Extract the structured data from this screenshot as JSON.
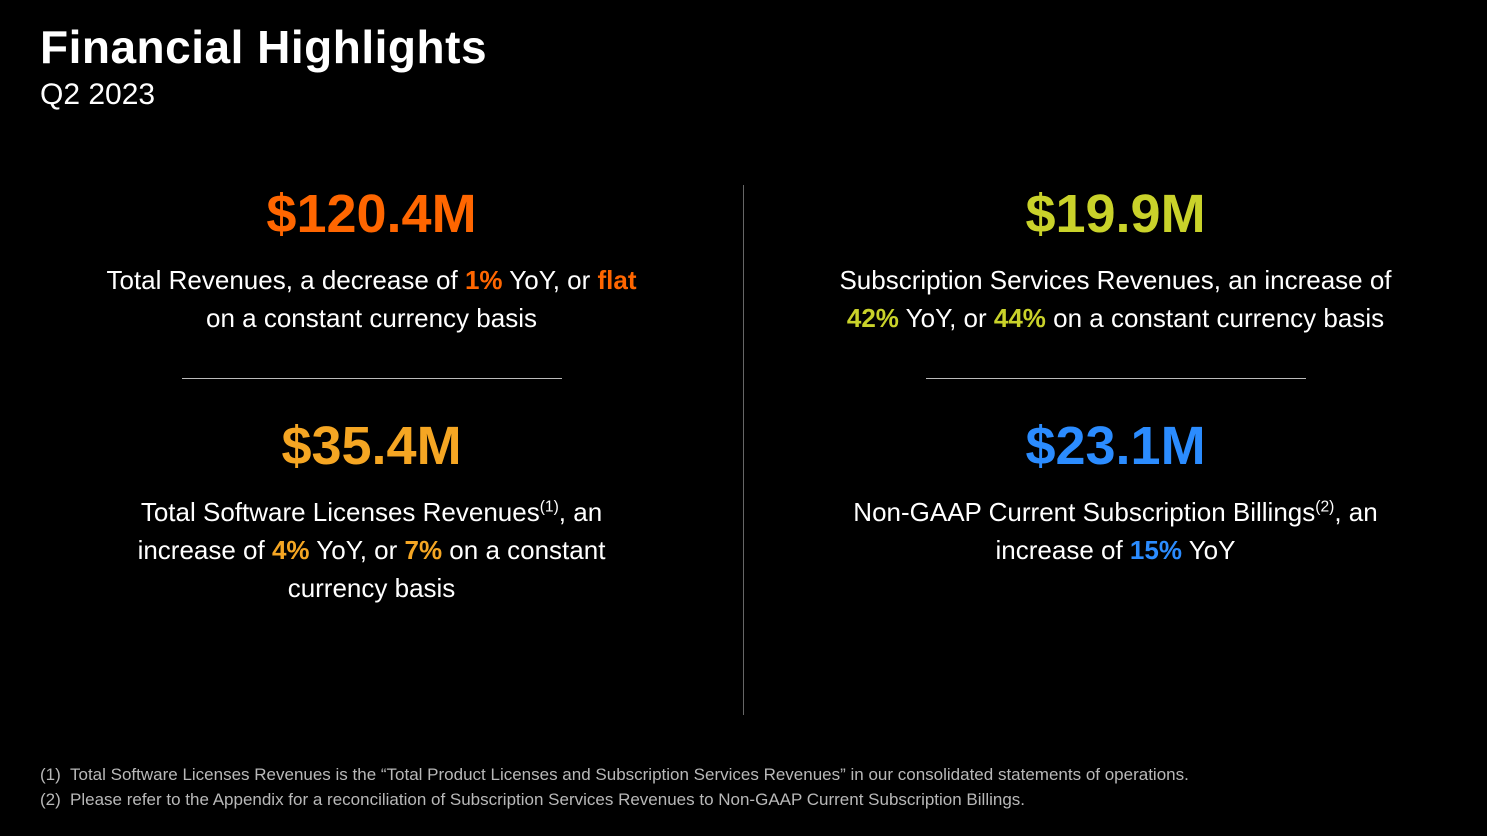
{
  "header": {
    "title": "Financial Highlights",
    "subtitle": "Q2 2023"
  },
  "metrics": {
    "top_left": {
      "value": "$120.4M",
      "value_color": "#ff6600",
      "desc_pre": "Total Revenues, a decrease of ",
      "pct1": "1%",
      "desc_mid": " YoY, or ",
      "pct2": "flat",
      "desc_post": " on a constant currency basis"
    },
    "bot_left": {
      "value": "$35.4M",
      "value_color": "#f5a623",
      "desc_pre": "Total Software Licenses Revenues",
      "sup": "(1)",
      "desc_pre2": ", an increase of ",
      "pct1": "4%",
      "desc_mid": " YoY, or ",
      "pct2": "7%",
      "desc_post": " on a constant currency basis"
    },
    "top_right": {
      "value": "$19.9M",
      "value_color": "#c9d22a",
      "desc_pre": "Subscription Services Revenues, an increase of ",
      "pct1": "42%",
      "desc_mid": " YoY, or ",
      "pct2": "44%",
      "desc_post": " on a constant currency basis"
    },
    "bot_right": {
      "value": "$23.1M",
      "value_color": "#2b8cff",
      "desc_pre": "Non-GAAP Current Subscription Billings",
      "sup": "(2)",
      "desc_pre2": ", an increase of ",
      "pct1": "15%",
      "desc_post": " YoY"
    }
  },
  "footnotes": {
    "n1_num": "(1)",
    "n1": "Total Software Licenses Revenues is the “Total Product Licenses and Subscription Services Revenues” in our consolidated statements of operations.",
    "n2_num": "(2)",
    "n2": "Please refer to the Appendix for a reconciliation of Subscription Services Revenues to Non-GAAP Current Subscription Billings."
  },
  "style": {
    "background": "#000000",
    "text_color": "#ffffff",
    "divider_color": "#666666",
    "hr_color": "#bbbbbb",
    "footnote_color": "#b8b8b8",
    "title_fontsize": 46,
    "subtitle_fontsize": 30,
    "metric_fontsize": 54,
    "desc_fontsize": 26,
    "footnote_fontsize": 17
  }
}
